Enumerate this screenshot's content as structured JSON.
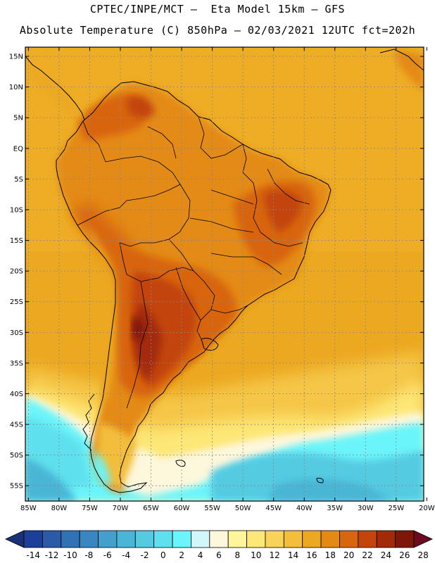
{
  "header": {
    "line1": "CPTEC/INPE/MCT –  Eta Model 15km – GFS",
    "line2": "Absolute Temperature (C) 850hPa – 02/03/2021 12UTC fct=202h"
  },
  "axes": {
    "lat_labels": [
      "15N",
      "10N",
      "5N",
      "EQ",
      "5S",
      "10S",
      "15S",
      "20S",
      "25S",
      "30S",
      "35S",
      "40S",
      "45S",
      "50S",
      "55S"
    ],
    "lat_values": [
      15,
      10,
      5,
      0,
      -5,
      -10,
      -15,
      -20,
      -25,
      -30,
      -35,
      -40,
      -45,
      -50,
      -55
    ],
    "lon_labels": [
      "85W",
      "80W",
      "75W",
      "70W",
      "65W",
      "60W",
      "55W",
      "50W",
      "45W",
      "40W",
      "35W",
      "30W",
      "25W",
      "20W"
    ],
    "lon_values": [
      -85,
      -80,
      -75,
      -70,
      -65,
      -60,
      -55,
      -50,
      -45,
      -40,
      -35,
      -30,
      -25,
      -20
    ],
    "lon_range": [
      -85.5,
      -20.5
    ],
    "lat_range": [
      -57.5,
      16.5
    ],
    "grid": true
  },
  "colorbar": {
    "labels": [
      "-14",
      "-12",
      "-10",
      "-8",
      "-6",
      "-4",
      "-2",
      "0",
      "2",
      "4",
      "6",
      "8",
      "10",
      "12",
      "14",
      "16",
      "18",
      "20",
      "22",
      "24",
      "26",
      "28"
    ],
    "colors": [
      "#1c3f9a",
      "#2b5aa8",
      "#3171b5",
      "#3a86c1",
      "#43a0cc",
      "#4ab6d6",
      "#55cbe2",
      "#5ee0ee",
      "#6af5fa",
      "#d2f7fb",
      "#fdf7dc",
      "#fff59a",
      "#fde776",
      "#f8d35a",
      "#f2be3b",
      "#eca820",
      "#e48a14",
      "#d8650f",
      "#c3450c",
      "#a32a09",
      "#7e170a"
    ],
    "low_arrow_color": "#1a3275",
    "high_arrow_color": "#6e0a20"
  }
}
